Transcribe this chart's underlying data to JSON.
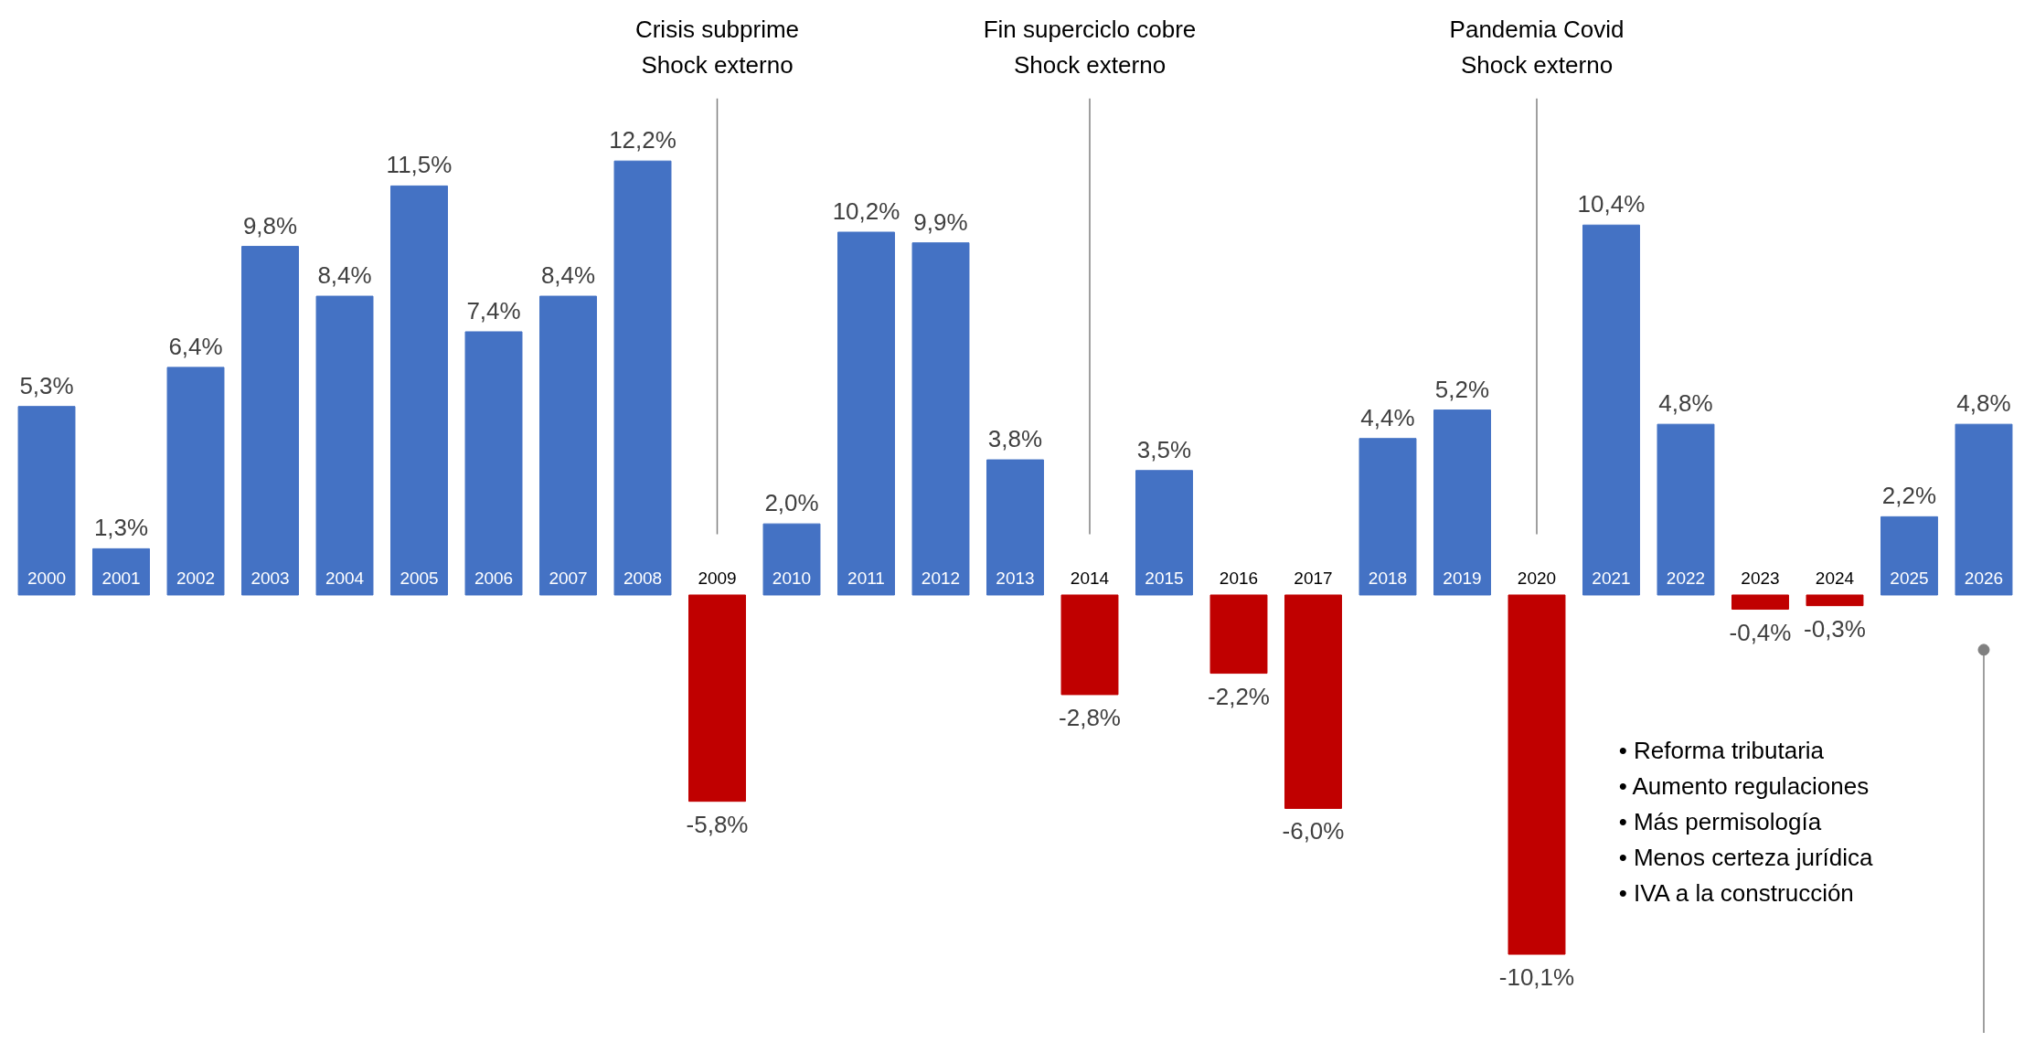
{
  "chart_data": {
    "type": "bar",
    "categories": [
      "2000",
      "2001",
      "2002",
      "2003",
      "2004",
      "2005",
      "2006",
      "2007",
      "2008",
      "2009",
      "2010",
      "2011",
      "2012",
      "2013",
      "2014",
      "2015",
      "2016",
      "2017",
      "2018",
      "2019",
      "2020",
      "2021",
      "2022",
      "2023",
      "2024",
      "2025",
      "2026"
    ],
    "values": [
      5.3,
      1.3,
      6.4,
      9.8,
      8.4,
      11.5,
      7.4,
      8.4,
      12.2,
      -5.8,
      2.0,
      10.2,
      9.9,
      3.8,
      -2.8,
      3.5,
      -2.2,
      -6.0,
      4.4,
      5.2,
      -10.1,
      10.4,
      4.8,
      -0.4,
      -0.3,
      2.2,
      4.8
    ],
    "value_labels": [
      "5,3%",
      "1,3%",
      "6,4%",
      "9,8%",
      "8,4%",
      "11,5%",
      "7,4%",
      "8,4%",
      "12,2%",
      "-5,8%",
      "2,0%",
      "10,2%",
      "9,9%",
      "3,8%",
      "-2,8%",
      "3,5%",
      "-2,2%",
      "-6,0%",
      "4,4%",
      "5,2%",
      "-10,1%",
      "10,4%",
      "4,8%",
      "-0,4%",
      "-0,3%",
      "2,2%",
      "4,8%"
    ],
    "colors": [
      "#4472c4",
      "#4472c4",
      "#4472c4",
      "#4472c4",
      "#4472c4",
      "#4472c4",
      "#4472c4",
      "#4472c4",
      "#4472c4",
      "#c00000",
      "#4472c4",
      "#4472c4",
      "#4472c4",
      "#4472c4",
      "#c00000",
      "#4472c4",
      "#c00000",
      "#c00000",
      "#4472c4",
      "#4472c4",
      "#c00000",
      "#4472c4",
      "#4472c4",
      "#c00000",
      "#c00000",
      "#4472c4",
      "#4472c4"
    ],
    "annotations": [
      {
        "text": "Crisis subprime\nShock externo",
        "x": "2009"
      },
      {
        "text": "Fin superciclo cobre\nShock externo",
        "x": "2014"
      },
      {
        "text": "Pandemia Covid\nShock externo",
        "x": "2020"
      },
      "•  Reforma tributaria\n•  Aumento regulaciones\n•  Más permisología\n•  Menos certeza jurídica\n•  IVA a la construcción"
    ]
  }
}
